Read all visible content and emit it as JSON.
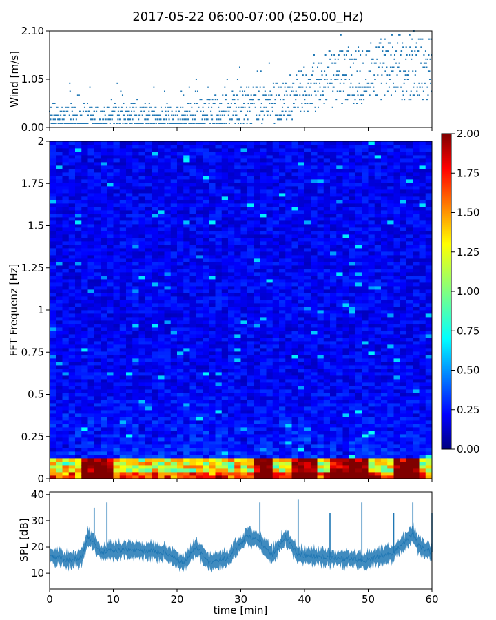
{
  "title": "2017-05-22 06:00-07:00 (250.00_Hz)",
  "chart_data": [
    {
      "name": "wind",
      "type": "scatter",
      "ylabel": "Wind [m/s]",
      "xlim": [
        0,
        60
      ],
      "ylim": [
        0,
        2.1
      ],
      "yticks": [
        0,
        1.05,
        2.1
      ],
      "ytick_labels": [
        "0.00",
        "1.05",
        "2.10"
      ],
      "color": "#1f77b4",
      "trend": [
        [
          0,
          0.18
        ],
        [
          10,
          0.18
        ],
        [
          20,
          0.2
        ],
        [
          25,
          0.3
        ],
        [
          30,
          0.45
        ],
        [
          36,
          0.55
        ],
        [
          40,
          0.8
        ],
        [
          44,
          1.05
        ],
        [
          48,
          1.2
        ],
        [
          52,
          1.25
        ],
        [
          56,
          1.3
        ],
        [
          60,
          1.3
        ]
      ]
    },
    {
      "name": "spectrogram",
      "type": "heatmap",
      "ylabel": "FFT Frequenz [Hz]",
      "xlim": [
        0,
        60
      ],
      "ylim": [
        0,
        2
      ],
      "yticks": [
        0,
        0.25,
        0.5,
        0.75,
        1,
        1.25,
        1.5,
        1.75,
        2
      ],
      "ytick_labels": [
        "0",
        "0.25",
        "0.5",
        "0.75",
        "1",
        "1.25",
        "1.5",
        "1.75",
        "2"
      ],
      "colormap": "jet",
      "clim": [
        0,
        2
      ],
      "colorbar_ticks": [
        "0.00",
        "0.25",
        "0.50",
        "0.75",
        "1.00",
        "1.25",
        "1.50",
        "1.75",
        "2.00"
      ],
      "low_freq_peaks_min": [
        [
          5,
          7
        ],
        [
          7,
          10
        ],
        [
          32,
          35
        ],
        [
          38,
          42
        ],
        [
          44,
          50
        ],
        [
          54,
          58
        ]
      ]
    },
    {
      "name": "spl",
      "type": "line",
      "ylabel": "SPL [dB]",
      "xlabel": "time [min]",
      "xlim": [
        0,
        60
      ],
      "ylim": [
        4,
        41
      ],
      "yticks": [
        10,
        20,
        30,
        40
      ],
      "xticks": [
        0,
        10,
        20,
        30,
        40,
        50,
        60
      ],
      "color": "#1f77b4",
      "trend": [
        [
          0,
          17
        ],
        [
          3,
          15
        ],
        [
          5,
          16
        ],
        [
          6,
          24
        ],
        [
          8,
          18
        ],
        [
          12,
          19
        ],
        [
          18,
          18
        ],
        [
          21,
          14
        ],
        [
          23,
          20
        ],
        [
          25,
          14
        ],
        [
          28,
          16
        ],
        [
          31,
          24
        ],
        [
          33,
          22
        ],
        [
          35,
          17
        ],
        [
          37,
          24
        ],
        [
          39,
          17
        ],
        [
          44,
          16
        ],
        [
          50,
          15
        ],
        [
          54,
          18
        ],
        [
          57,
          25
        ],
        [
          58,
          20
        ],
        [
          60,
          18
        ]
      ],
      "spikes": [
        [
          7,
          35
        ],
        [
          9,
          37
        ],
        [
          33,
          37
        ],
        [
          39,
          38
        ],
        [
          44,
          33
        ],
        [
          49,
          37
        ],
        [
          54,
          33
        ],
        [
          57,
          37
        ],
        [
          60,
          33
        ]
      ]
    }
  ]
}
